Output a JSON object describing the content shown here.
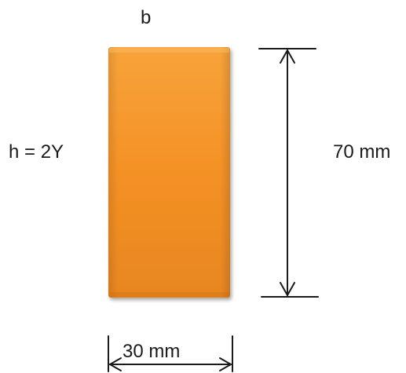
{
  "labels": {
    "b": "b",
    "h": "h = 2Y",
    "height_dimension": "70 mm",
    "width_dimension": "30 mm"
  },
  "colors": {
    "block_light": "#f7a33a",
    "block_mid": "#f49126",
    "block_dark": "#e07a17",
    "block_edge": "#d9771a",
    "line": "#1a1a1a"
  }
}
